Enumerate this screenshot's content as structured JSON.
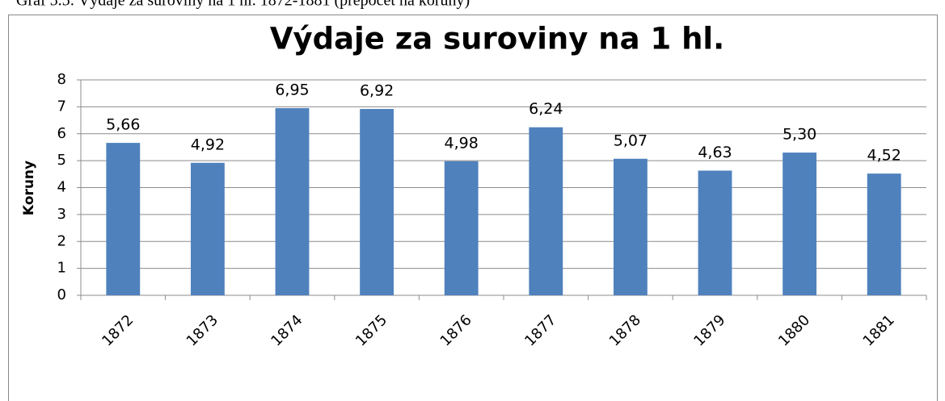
{
  "caption": "Graf 5.5: Výdaje za suroviny na 1 hl. 1872-1881 (přepočet na koruny)",
  "chart_data": {
    "type": "bar",
    "title": "Výdaje za suroviny na 1 hl.",
    "y_label": "Koruny",
    "categories": [
      "1872",
      "1873",
      "1874",
      "1875",
      "1876",
      "1877",
      "1878",
      "1879",
      "1880",
      "1881"
    ],
    "values": [
      5.66,
      4.92,
      6.95,
      6.92,
      4.98,
      6.24,
      5.07,
      4.63,
      5.3,
      4.52
    ],
    "value_labels": [
      "5,66",
      "4,92",
      "6,95",
      "6,92",
      "4,98",
      "6,24",
      "5,07",
      "4,63",
      "5,30",
      "4,52"
    ],
    "color": "#4f81bd",
    "ylim": [
      0,
      8
    ],
    "yticks": [
      0,
      1,
      2,
      3,
      4,
      5,
      6,
      7,
      8
    ],
    "grid": true
  }
}
